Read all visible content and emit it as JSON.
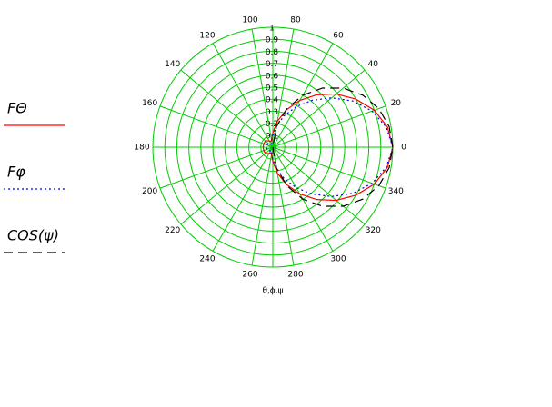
{
  "chart_data": {
    "type": "polar",
    "x_label": "θ,ϕ,ψ",
    "theta": [
      0,
      10,
      20,
      30,
      40,
      50,
      60,
      70,
      80,
      90,
      100,
      110,
      120,
      130,
      140,
      150,
      160,
      170,
      180,
      190,
      200,
      210,
      220,
      230,
      240,
      250,
      260,
      270,
      280,
      290,
      300,
      310,
      320,
      330,
      340,
      350,
      360
    ],
    "series": [
      {
        "name": "FΘ",
        "color": "#ff0000",
        "style": "solid",
        "values": [
          1.0,
          0.97,
          0.9,
          0.8,
          0.69,
          0.57,
          0.45,
          0.33,
          0.22,
          0.12,
          0.06,
          0.05,
          0.06,
          0.07,
          0.08,
          0.08,
          0.08,
          0.08,
          0.08,
          0.08,
          0.08,
          0.08,
          0.08,
          0.07,
          0.06,
          0.05,
          0.06,
          0.12,
          0.22,
          0.33,
          0.45,
          0.57,
          0.69,
          0.8,
          0.9,
          0.97,
          1.0
        ]
      },
      {
        "name": "Fφ",
        "color": "#0000ff",
        "style": "dotted",
        "values": [
          1.0,
          0.96,
          0.88,
          0.77,
          0.64,
          0.51,
          0.39,
          0.28,
          0.18,
          0.1,
          0.05,
          0.03,
          0.03,
          0.04,
          0.05,
          0.05,
          0.05,
          0.05,
          0.05,
          0.05,
          0.05,
          0.05,
          0.05,
          0.04,
          0.03,
          0.03,
          0.05,
          0.1,
          0.18,
          0.28,
          0.39,
          0.51,
          0.64,
          0.77,
          0.88,
          0.96,
          1.0
        ]
      },
      {
        "name": "COS(ψ)",
        "color": "#000000",
        "style": "dashed",
        "values": [
          1.0,
          0.985,
          0.94,
          0.866,
          0.766,
          0.643,
          0.5,
          0.342,
          0.174,
          0,
          null,
          null,
          null,
          null,
          null,
          null,
          null,
          null,
          null,
          null,
          null,
          null,
          null,
          null,
          null,
          null,
          null,
          0,
          0.174,
          0.342,
          0.5,
          0.643,
          0.766,
          0.866,
          0.94,
          0.985,
          1.0
        ]
      }
    ],
    "rlim": [
      0,
      1
    ],
    "rticks": [
      0.1,
      0.2,
      0.3,
      0.4,
      0.5,
      0.6,
      0.7,
      0.8,
      0.9,
      1
    ],
    "thetaticks": [
      0,
      20,
      40,
      60,
      80,
      100,
      120,
      140,
      160,
      180,
      200,
      220,
      240,
      260,
      280,
      300,
      320,
      340
    ],
    "grid_color": "#00cc00"
  }
}
